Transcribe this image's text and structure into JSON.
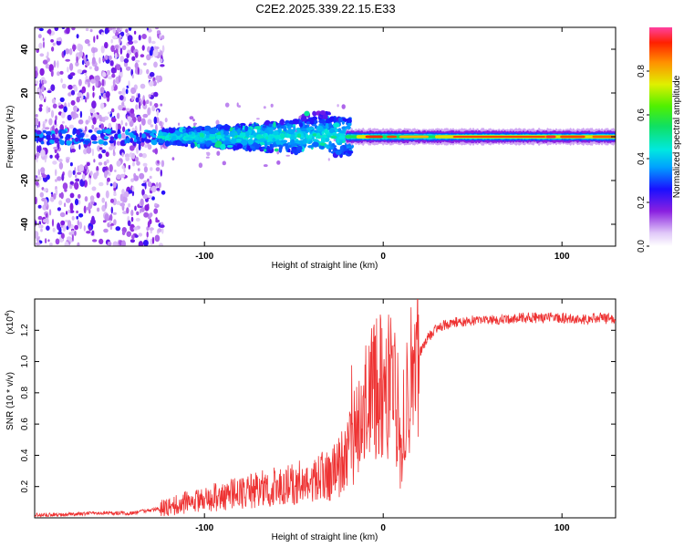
{
  "page_title": "C2E2.2025.339.22.15.E33",
  "colors": {
    "signal_line": "#ee3333",
    "axis": "#000000",
    "background": "#ffffff"
  },
  "chart_data": [
    {
      "type": "heatmap",
      "title": "C2E2.2025.339.22.15.E33",
      "xlabel": "Height of straight line (km)",
      "ylabel": "Frequency (Hz)",
      "xlim": [
        -195,
        130
      ],
      "ylim": [
        -50,
        50
      ],
      "xticks": [
        -100,
        0,
        100
      ],
      "xtick_labels": [
        "-100",
        "0",
        "100"
      ],
      "yticks": [
        -40,
        -20,
        0,
        20,
        40
      ],
      "ytick_labels": [
        "-40",
        "-20",
        "0",
        "20",
        "40"
      ],
      "colorbar": {
        "label": "Normalized spectral amplitude",
        "range": [
          0,
          1
        ],
        "ticks": [
          0.0,
          0.2,
          0.4,
          0.6,
          0.8
        ],
        "tick_labels": [
          "0.0",
          "0.2",
          "0.4",
          "0.6",
          "0.8"
        ]
      },
      "description_points": {
        "note_regions": [
          {
            "x_range": [
              -195,
              -125
            ],
            "y_range": [
              -50,
              50
            ],
            "amplitude": 0.15
          },
          {
            "x_range": [
              -125,
              -20
            ],
            "y_range": [
              -8,
              8
            ],
            "amplitude": 0.35
          },
          {
            "x_range": [
              -20,
              130
            ],
            "y_range": [
              -3,
              3
            ],
            "amplitude": 0.85
          }
        ]
      }
    },
    {
      "type": "line",
      "xlabel": "Height of straight line (km)",
      "ylabel": "SNR (10 * v/v)",
      "y_scale_label": "(x10",
      "y_scale_exponent": "4",
      "y_scale_suffix": ")",
      "xlim": [
        -195,
        130
      ],
      "ylim": [
        0,
        1.4
      ],
      "xticks": [
        -100,
        0,
        100
      ],
      "xtick_labels": [
        "-100",
        "0",
        "100"
      ],
      "yticks": [
        0.2,
        0.4,
        0.6,
        0.8,
        1.0,
        1.2
      ],
      "ytick_labels": [
        "0.2",
        "0.4",
        "0.6",
        "0.8",
        "1.0",
        "1.2"
      ],
      "series": [
        {
          "name": "SNR",
          "color": "#ee3333",
          "x": [
            -195,
            -180,
            -160,
            -140,
            -130,
            -120,
            -110,
            -100,
            -90,
            -80,
            -70,
            -60,
            -50,
            -40,
            -30,
            -25,
            -20,
            -15,
            -10,
            -5,
            0,
            5,
            8,
            10,
            12,
            15,
            20,
            25,
            30,
            40,
            50,
            60,
            70,
            80,
            90,
            100,
            110,
            120,
            130
          ],
          "y": [
            0.02,
            0.02,
            0.03,
            0.03,
            0.05,
            0.07,
            0.1,
            0.12,
            0.14,
            0.16,
            0.18,
            0.2,
            0.22,
            0.24,
            0.28,
            0.32,
            0.4,
            0.55,
            0.7,
            0.8,
            0.85,
            0.86,
            0.6,
            0.3,
            0.8,
            0.9,
            1.05,
            1.15,
            1.22,
            1.25,
            1.26,
            1.27,
            1.27,
            1.28,
            1.28,
            1.28,
            1.27,
            1.28,
            1.27
          ]
        }
      ]
    }
  ]
}
